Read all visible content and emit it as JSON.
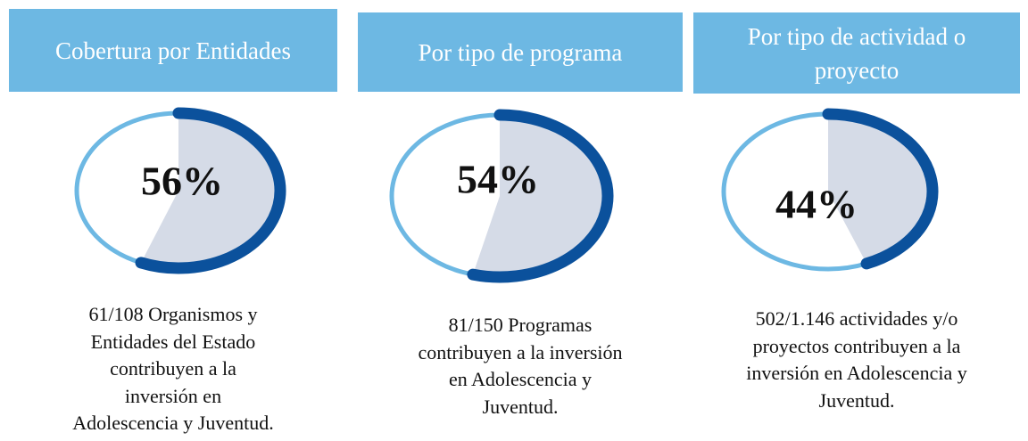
{
  "chart_data": [
    {
      "type": "pie",
      "title": "Cobertura por Entidades",
      "values": [
        56
      ],
      "value_labels": [
        "56%"
      ],
      "description": [
        "61/108 Organismos y",
        "Entidades del Estado",
        "contribuyen a la",
        "inversión en",
        "Adolescencia y Juventud."
      ]
    },
    {
      "type": "pie",
      "title": "Por tipo de programa",
      "values": [
        54
      ],
      "value_labels": [
        "54%"
      ],
      "description": [
        "81/150 Programas",
        "contribuyen a la inversión",
        "en Adolescencia y",
        "Juventud."
      ]
    },
    {
      "type": "pie",
      "title": "Por tipo de actividad o proyecto",
      "values": [
        44
      ],
      "value_labels": [
        "44%"
      ],
      "description": [
        "502/1.146 actividades y/o",
        "proyectos contribuyen a la",
        "inversión en Adolescencia y",
        "Juventud."
      ]
    }
  ]
}
